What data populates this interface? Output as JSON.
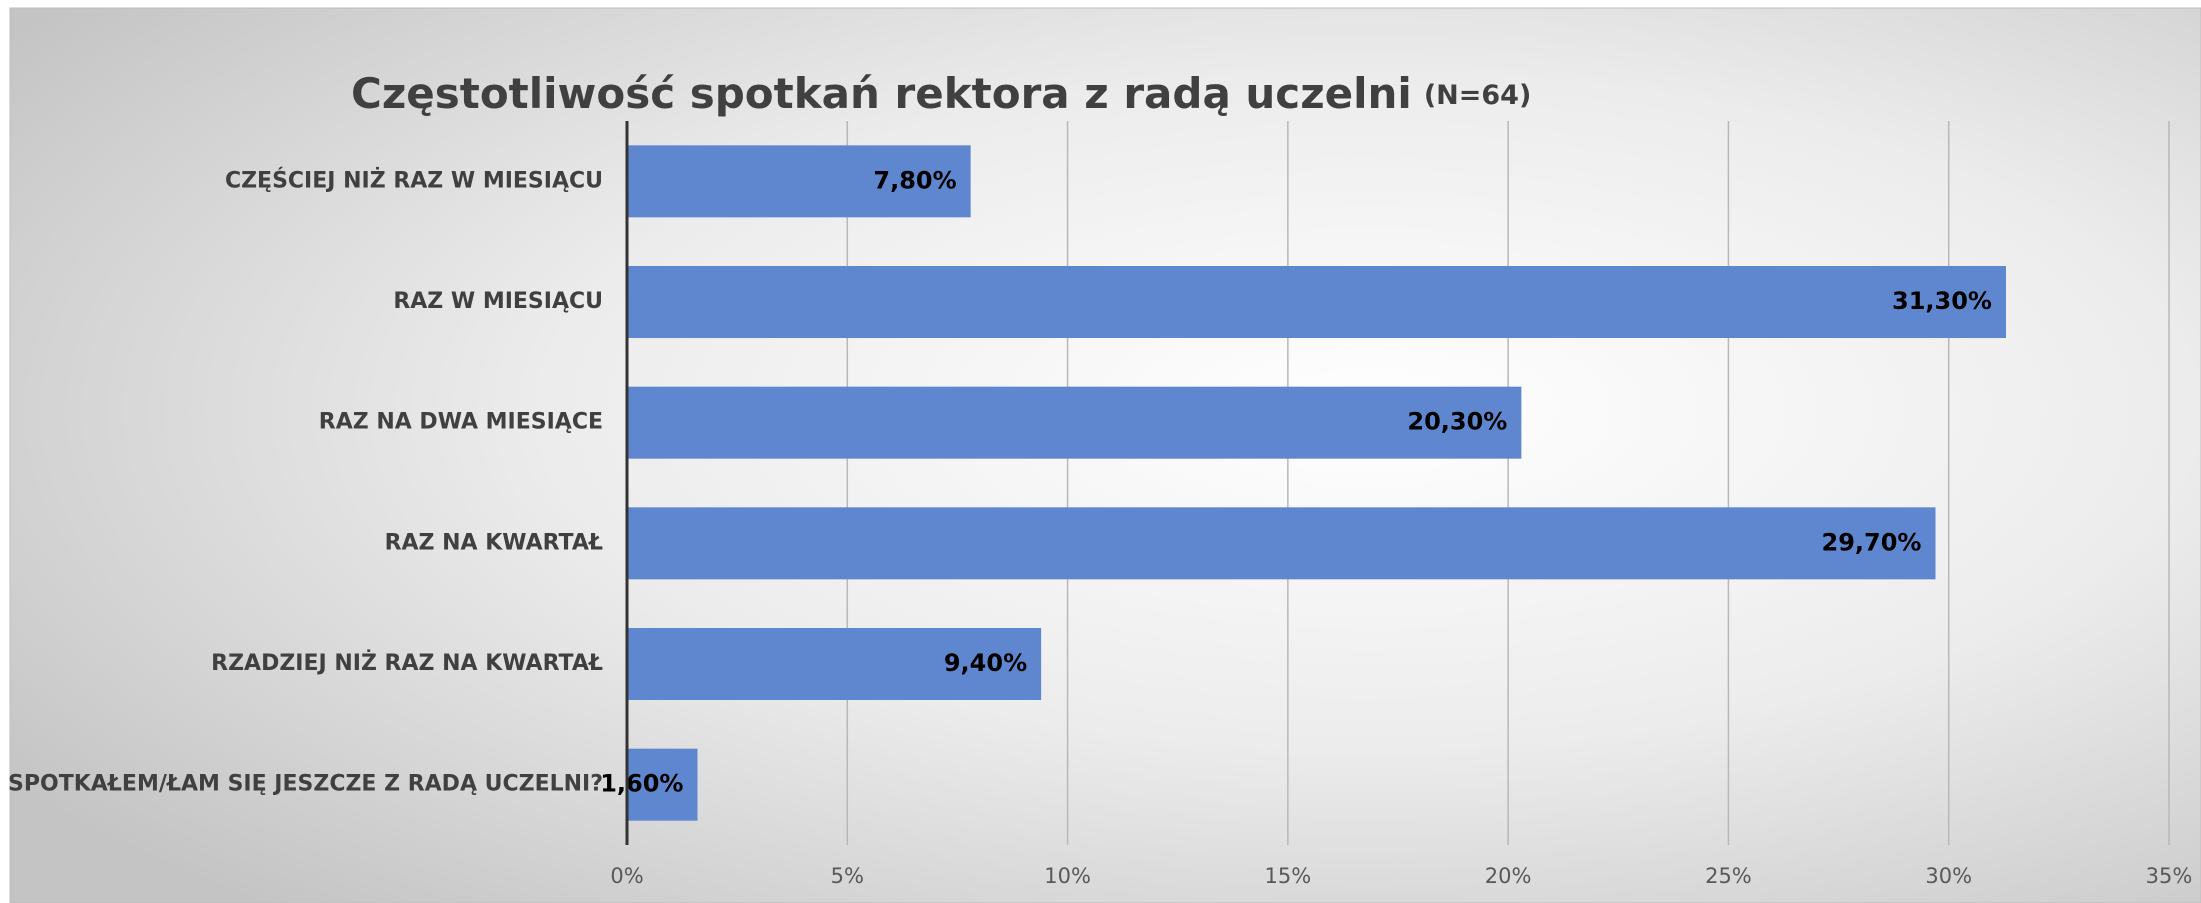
{
  "chart_data": {
    "type": "bar",
    "orientation": "horizontal",
    "title": "Częstotliwość spotkań rektora z radą uczelni",
    "subtitle": "(N=64)",
    "categories": [
      "CZĘŚCIEJ NIŻ RAZ W MIESIĄCU",
      "RAZ W MIESIĄCU",
      "RAZ NA DWA MIESIĄCE",
      "RAZ NA KWARTAŁ",
      "RZADZIEJ NIŻ RAZ NA KWARTAŁ",
      "NIE SPOTKAŁEM/ŁAM SIĘ JESZCZE Z RADĄ UCZELNI?"
    ],
    "values": [
      7.8,
      31.3,
      20.3,
      29.7,
      9.4,
      1.6
    ],
    "value_labels": [
      "7,80%",
      "31,30%",
      "20,30%",
      "29,70%",
      "9,40%",
      "1,60%"
    ],
    "color": "#5f87cf",
    "xlim": [
      0,
      35
    ],
    "xticks": [
      {
        "value": 0,
        "label": "0%"
      },
      {
        "value": 5,
        "label": "5%"
      },
      {
        "value": 10,
        "label": "10%"
      },
      {
        "value": 15,
        "label": "15%"
      },
      {
        "value": 20,
        "label": "20%"
      },
      {
        "value": 25,
        "label": "25%"
      },
      {
        "value": 30,
        "label": "30%"
      },
      {
        "value": 35,
        "label": "35%"
      }
    ],
    "grid": true
  }
}
